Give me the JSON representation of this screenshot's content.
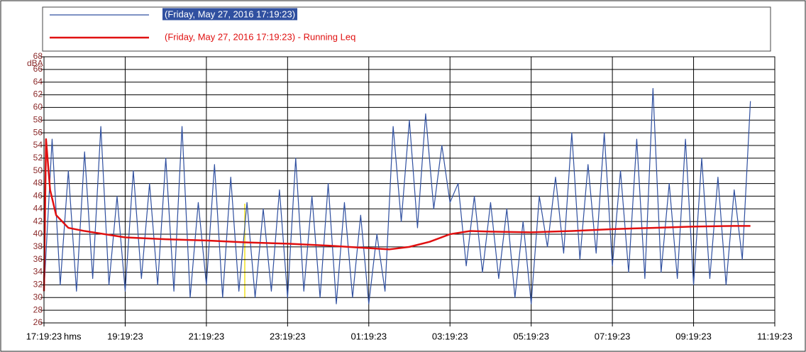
{
  "chart_data": {
    "type": "line",
    "y_label": "dBA",
    "x_label": "hms",
    "xlim": [
      0,
      18
    ],
    "xticks": [
      {
        "value": 0,
        "label": "17:19:23"
      },
      {
        "value": 2,
        "label": "19:19:23"
      },
      {
        "value": 4,
        "label": "21:19:23"
      },
      {
        "value": 6,
        "label": "23:19:23"
      },
      {
        "value": 8,
        "label": "01:19:23"
      },
      {
        "value": 10,
        "label": "03:19:23"
      },
      {
        "value": 12,
        "label": "05:19:23"
      },
      {
        "value": 14,
        "label": "07:19:23"
      },
      {
        "value": 16,
        "label": "09:19:23"
      },
      {
        "value": 18,
        "label": "11:19:23"
      }
    ],
    "ylim": [
      26,
      68
    ],
    "yticks": [
      26,
      28,
      30,
      32,
      34,
      36,
      38,
      40,
      42,
      44,
      46,
      48,
      50,
      52,
      54,
      56,
      58,
      60,
      62,
      64,
      66,
      68
    ],
    "grid": true,
    "series": [
      {
        "name": "(Friday, May 27, 2016 17:19:23)",
        "color": "#3050a0",
        "x": [
          0,
          0.2,
          0.4,
          0.6,
          0.8,
          1,
          1.2,
          1.4,
          1.6,
          1.8,
          2,
          2.2,
          2.4,
          2.6,
          2.8,
          3,
          3.2,
          3.4,
          3.6,
          3.8,
          4,
          4.2,
          4.4,
          4.6,
          4.8,
          5,
          5.2,
          5.4,
          5.6,
          5.8,
          6,
          6.2,
          6.4,
          6.6,
          6.8,
          7,
          7.2,
          7.4,
          7.6,
          7.8,
          8,
          8.2,
          8.4,
          8.6,
          8.8,
          9,
          9.2,
          9.4,
          9.6,
          9.8,
          10,
          10.2,
          10.4,
          10.6,
          10.8,
          11,
          11.2,
          11.4,
          11.6,
          11.8,
          12,
          12.2,
          12.4,
          12.6,
          12.8,
          13,
          13.2,
          13.4,
          13.6,
          13.8,
          14,
          14.2,
          14.4,
          14.6,
          14.8,
          15,
          15.2,
          15.4,
          15.6,
          15.8,
          16,
          16.2,
          16.4,
          16.6,
          16.8,
          17,
          17.2,
          17.4
        ],
        "values": [
          31,
          55,
          32,
          50,
          31,
          53,
          33,
          57,
          32,
          46,
          31,
          50,
          33,
          48,
          32,
          52,
          31,
          57,
          30,
          45,
          32,
          51,
          30,
          49,
          31,
          45,
          30,
          44,
          31,
          47,
          30,
          52,
          31,
          46,
          30,
          48,
          29,
          45,
          30,
          43,
          29,
          40,
          31,
          57,
          42,
          58,
          41,
          59,
          44,
          54,
          45,
          48,
          35,
          46,
          34,
          45,
          33,
          44,
          30,
          42,
          29,
          46,
          38,
          49,
          37,
          56,
          36,
          51,
          37,
          56,
          35,
          50,
          34,
          55,
          33,
          63,
          34,
          48,
          33,
          55,
          32,
          52,
          33,
          49,
          32,
          47,
          36,
          61
        ]
      },
      {
        "name": "(Friday, May 27, 2016 17:19:23) - Running Leq",
        "color": "#e01010",
        "x": [
          0,
          0.05,
          0.15,
          0.3,
          0.6,
          1,
          2,
          3,
          4,
          5,
          6,
          7,
          8,
          8.5,
          9,
          9.5,
          10,
          10.5,
          11,
          12,
          13,
          14,
          15,
          16,
          17,
          17.4
        ],
        "values": [
          31,
          55,
          47,
          43,
          41,
          40.5,
          39.5,
          39.2,
          39,
          38.7,
          38.5,
          38.2,
          37.8,
          37.6,
          38,
          38.8,
          40,
          40.5,
          40.4,
          40.3,
          40.5,
          40.8,
          41,
          41.2,
          41.3,
          41.3
        ]
      }
    ]
  }
}
